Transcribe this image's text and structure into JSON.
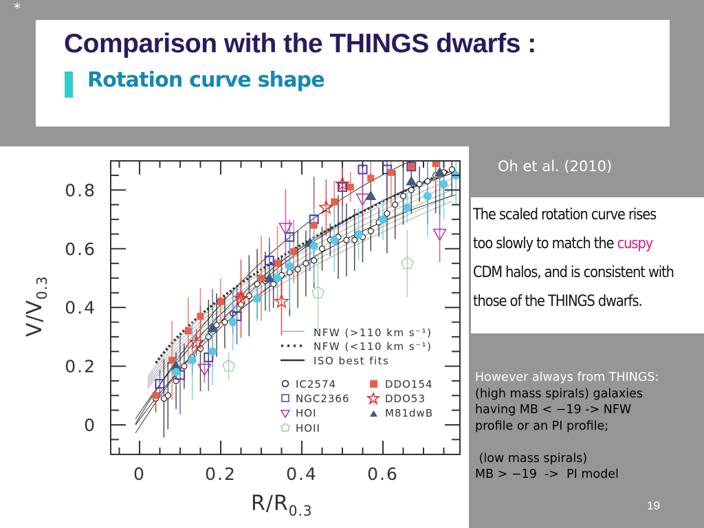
{
  "slide": {
    "marker": "*",
    "title": "Comparison with the THINGS dwarfs :",
    "subtitle": "Rotation curve shape",
    "citation": "Oh et al. (2010)",
    "summary": {
      "line1": "The scaled rotation curve rises",
      "line2_pre": "too slowly to match the ",
      "line2_highlight": "cuspy",
      "line3": "CDM halos, and is consistent with",
      "line4": "those of the THINGS dwarfs."
    },
    "notes": {
      "heading": "However always from THINGS:",
      "line1": "(high mass spirals) galaxies",
      "line2": "having MB < −19 -> NFW",
      "line3": "profile or an PI profile;",
      "line4": " (low mass spirals)",
      "line5": "MB > −19  ->  PI model"
    },
    "page_number": "19",
    "colors": {
      "background": "#969696",
      "title": "#2a1a5e",
      "subtitle": "#1588b4",
      "subtitle_bar": "#33cccc",
      "highlight": "#e0197d"
    }
  },
  "chart_data": {
    "type": "scatter",
    "title": "",
    "xlabel": "R/R",
    "xlabel_sub": "0.3",
    "ylabel": "V/V",
    "ylabel_sub": "0.3",
    "xlim": [
      -0.07,
      0.79
    ],
    "ylim": [
      -0.1,
      0.9
    ],
    "x_ticks": [
      {
        "value": 0,
        "label": "0"
      },
      {
        "value": 0.2,
        "label": "0.2"
      },
      {
        "value": 0.4,
        "label": "0.4"
      },
      {
        "value": 0.6,
        "label": "0.6"
      }
    ],
    "y_ticks": [
      {
        "value": 0,
        "label": "0"
      },
      {
        "value": 0.2,
        "label": "0.2"
      },
      {
        "value": 0.4,
        "label": "0.4"
      },
      {
        "value": 0.6,
        "label": "0.6"
      },
      {
        "value": 0.8,
        "label": "0.8"
      }
    ],
    "legend_position": "bottom-right",
    "lines": [
      {
        "name": "NFW (>110 km s⁻¹)",
        "style": "thin-gray",
        "color": "#aaaaaa",
        "bundle": [
          {
            "a": 0.98,
            "p": 0.56
          },
          {
            "a": 0.96,
            "p": 0.57
          },
          {
            "a": 0.94,
            "p": 0.58
          },
          {
            "a": 0.92,
            "p": 0.59
          },
          {
            "a": 0.9,
            "p": 0.6
          },
          {
            "a": 0.88,
            "p": 0.61
          }
        ],
        "x_range": [
          0.02,
          0.77
        ]
      },
      {
        "name": "NFW (<110 km s⁻¹)",
        "style": "dotted",
        "color": "#333333",
        "bundle": [
          {
            "a": 0.99,
            "p": 0.55
          }
        ],
        "x_range": [
          0.04,
          0.77
        ]
      },
      {
        "name": "ISO best fits",
        "style": "solid",
        "color": "#222222",
        "bundle": [
          {
            "a": 1.0,
            "p": 0.9
          },
          {
            "a": 0.9,
            "p": 0.9
          },
          {
            "a": 1.1,
            "p": 0.95
          },
          {
            "a": 1.05,
            "p": 1.0
          }
        ],
        "x_range": [
          0.0,
          0.77
        ]
      }
    ],
    "series": [
      {
        "name": "IC2574",
        "marker": "circle-open",
        "color": "#222222",
        "points": [
          [
            0.04,
            0.09
          ],
          [
            0.06,
            0.09
          ],
          [
            0.07,
            0.1
          ],
          [
            0.09,
            0.15
          ],
          [
            0.11,
            0.2
          ],
          [
            0.13,
            0.23
          ],
          [
            0.15,
            0.26
          ],
          [
            0.17,
            0.3
          ],
          [
            0.19,
            0.34
          ],
          [
            0.21,
            0.35
          ],
          [
            0.23,
            0.38
          ],
          [
            0.25,
            0.41
          ],
          [
            0.27,
            0.44
          ],
          [
            0.29,
            0.48
          ],
          [
            0.31,
            0.49
          ],
          [
            0.33,
            0.48
          ],
          [
            0.35,
            0.51
          ],
          [
            0.37,
            0.52
          ],
          [
            0.39,
            0.53
          ],
          [
            0.41,
            0.55
          ],
          [
            0.43,
            0.56
          ],
          [
            0.45,
            0.6
          ],
          [
            0.47,
            0.63
          ],
          [
            0.49,
            0.64
          ],
          [
            0.51,
            0.63
          ],
          [
            0.53,
            0.63
          ],
          [
            0.55,
            0.64
          ],
          [
            0.57,
            0.66
          ],
          [
            0.59,
            0.69
          ],
          [
            0.61,
            0.72
          ],
          [
            0.63,
            0.75
          ],
          [
            0.65,
            0.78
          ],
          [
            0.67,
            0.8
          ],
          [
            0.69,
            0.82
          ],
          [
            0.71,
            0.83
          ],
          [
            0.73,
            0.85
          ],
          [
            0.75,
            0.86
          ],
          [
            0.77,
            0.87
          ]
        ]
      },
      {
        "name": "NGC2366",
        "marker": "square-open",
        "color": "#4b3bb0",
        "points": [
          [
            0.05,
            0.14
          ],
          [
            0.1,
            0.17
          ],
          [
            0.17,
            0.23
          ],
          [
            0.24,
            0.37
          ],
          [
            0.32,
            0.56
          ],
          [
            0.37,
            0.64
          ],
          [
            0.43,
            0.7
          ],
          [
            0.5,
            0.81
          ],
          [
            0.55,
            0.87
          ],
          [
            0.61,
            0.87
          ],
          [
            0.67,
            0.88
          ]
        ]
      },
      {
        "name": "DDO154",
        "marker": "square-filled",
        "color": "#e8604a",
        "points": [
          [
            0.04,
            0.1
          ],
          [
            0.08,
            0.22
          ],
          [
            0.12,
            0.32
          ],
          [
            0.15,
            0.37
          ],
          [
            0.2,
            0.42
          ],
          [
            0.25,
            0.44
          ],
          [
            0.3,
            0.5
          ],
          [
            0.34,
            0.55
          ],
          [
            0.38,
            0.59
          ],
          [
            0.43,
            0.68
          ],
          [
            0.48,
            0.76
          ],
          [
            0.52,
            0.81
          ],
          [
            0.57,
            0.84
          ],
          [
            0.62,
            0.86
          ],
          [
            0.67,
            0.88
          ],
          [
            0.73,
            0.89
          ]
        ]
      },
      {
        "name": "DDO53",
        "marker": "star-open",
        "color": "#e02020",
        "points": [
          [
            0.14,
            0.28
          ],
          [
            0.25,
            0.43
          ],
          [
            0.35,
            0.42
          ],
          [
            0.46,
            0.74
          ],
          [
            0.5,
            0.82
          ]
        ]
      },
      {
        "name": "HOI",
        "marker": "triangle-down-open",
        "color": "#b0399c",
        "points": [
          [
            0.16,
            0.19
          ],
          [
            0.36,
            0.67
          ],
          [
            0.55,
            0.77
          ],
          [
            0.74,
            0.65
          ]
        ]
      },
      {
        "name": "HOII",
        "marker": "pentagon-open",
        "color": "#9fc99f",
        "points": [
          [
            0.22,
            0.2
          ],
          [
            0.44,
            0.45
          ],
          [
            0.66,
            0.55
          ]
        ]
      },
      {
        "name": "M81dwB",
        "marker": "triangle-filled",
        "color": "#3e5c7c",
        "points": [
          [
            0.09,
            0.2
          ],
          [
            0.18,
            0.33
          ],
          [
            0.32,
            0.5
          ],
          [
            0.42,
            0.62
          ],
          [
            0.57,
            0.78
          ],
          [
            0.67,
            0.83
          ],
          [
            0.74,
            0.86
          ]
        ]
      },
      {
        "name": "unlabeled (cyan)",
        "marker": "circle-filled",
        "color": "#5ac8e8",
        "points": [
          [
            0.09,
            0.18
          ],
          [
            0.13,
            0.22
          ],
          [
            0.18,
            0.25
          ],
          [
            0.23,
            0.35
          ],
          [
            0.29,
            0.43
          ],
          [
            0.34,
            0.5
          ],
          [
            0.37,
            0.54
          ],
          [
            0.43,
            0.61
          ],
          [
            0.48,
            0.63
          ],
          [
            0.54,
            0.65
          ],
          [
            0.6,
            0.7
          ],
          [
            0.66,
            0.74
          ],
          [
            0.71,
            0.78
          ],
          [
            0.75,
            0.82
          ],
          [
            0.78,
            0.85
          ]
        ]
      }
    ],
    "legend": {
      "lines": [
        "NFW (>110 km s⁻¹)",
        "NFW (<110 km s⁻¹)",
        "ISO best fits"
      ],
      "markers": [
        "IC2574",
        "DDO154",
        "NGC2366",
        "DDO53",
        "HOI",
        "M81dwB",
        "HOII"
      ]
    }
  }
}
